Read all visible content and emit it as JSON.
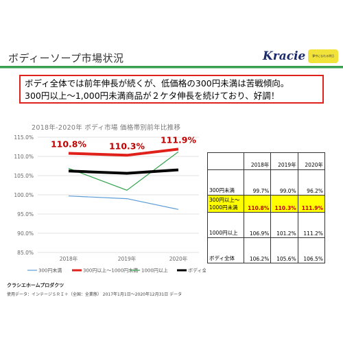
{
  "slide": {
    "title": "ボディーソープ市場状況",
    "logo_text": "Kracie",
    "logo_tagline": "夢中になれる明日"
  },
  "callout": {
    "line1": "ボディ全体では前年伸長が続くが、低価格の300円未満は苦戦傾向。",
    "line2": "300円以上～1,000円未満商品が２ケタ伸長を続けており、好調！"
  },
  "colors": {
    "s1": "#5b9bd5",
    "s2": "#e0201a",
    "s3": "#2ca148",
    "s4": "#000000",
    "label": "#c00000",
    "highlight": "#ffff00",
    "rule": "#3aa04f"
  },
  "chart_data": {
    "type": "line",
    "title": "2018年-2020年 ボディ市場 価格帯別前年比推移",
    "x": [
      "2018年",
      "2019年",
      "2020年"
    ],
    "ylim": [
      85.0,
      115.0
    ],
    "yticks": [
      "85.0%",
      "90.0%",
      "95.0%",
      "100.0%",
      "105.0%",
      "110.0%",
      "115.0%"
    ],
    "ytick_values": [
      85,
      90,
      95,
      100,
      105,
      110,
      115
    ],
    "grid": true,
    "legend_position": "bottom",
    "series": [
      {
        "name": "300円未満",
        "values": [
          99.7,
          99.0,
          96.2
        ],
        "color": "#5b9bd5",
        "width": 1.2
      },
      {
        "name": "300円以上～1000円未満",
        "values": [
          110.8,
          110.3,
          111.9
        ],
        "color": "#e0201a",
        "width": 4
      },
      {
        "name": "1000円以上",
        "values": [
          106.9,
          101.2,
          111.2
        ],
        "color": "#2ca148",
        "width": 1.2
      },
      {
        "name": "ボディ全体",
        "values": [
          106.2,
          105.6,
          106.5
        ],
        "color": "#000000",
        "width": 4
      }
    ],
    "data_labels": [
      "110.8%",
      "110.3%",
      "111.9%"
    ]
  },
  "table": {
    "headers": [
      "",
      "2018年",
      "2019年",
      "2020年"
    ],
    "rows": [
      {
        "label": "300円未満",
        "values": [
          "99.7%",
          "99.0%",
          "96.2%"
        ]
      },
      {
        "label": "300円以上～1000円未満",
        "values": [
          "110.8%",
          "110.3%",
          "111.9%"
        ],
        "highlight": true
      },
      {
        "label": "1000円以上",
        "values": [
          "106.9%",
          "101.2%",
          "111.2%"
        ]
      },
      {
        "label": "ボディ全体",
        "values": [
          "106.2%",
          "105.6%",
          "106.5%"
        ]
      }
    ]
  },
  "footer": {
    "company": "クラシエホームプロダクツ",
    "source": "使用データ：インテージＳＲＩ＋（全国：全業態） 2017年1月1日～2020年12月31日 データ"
  }
}
